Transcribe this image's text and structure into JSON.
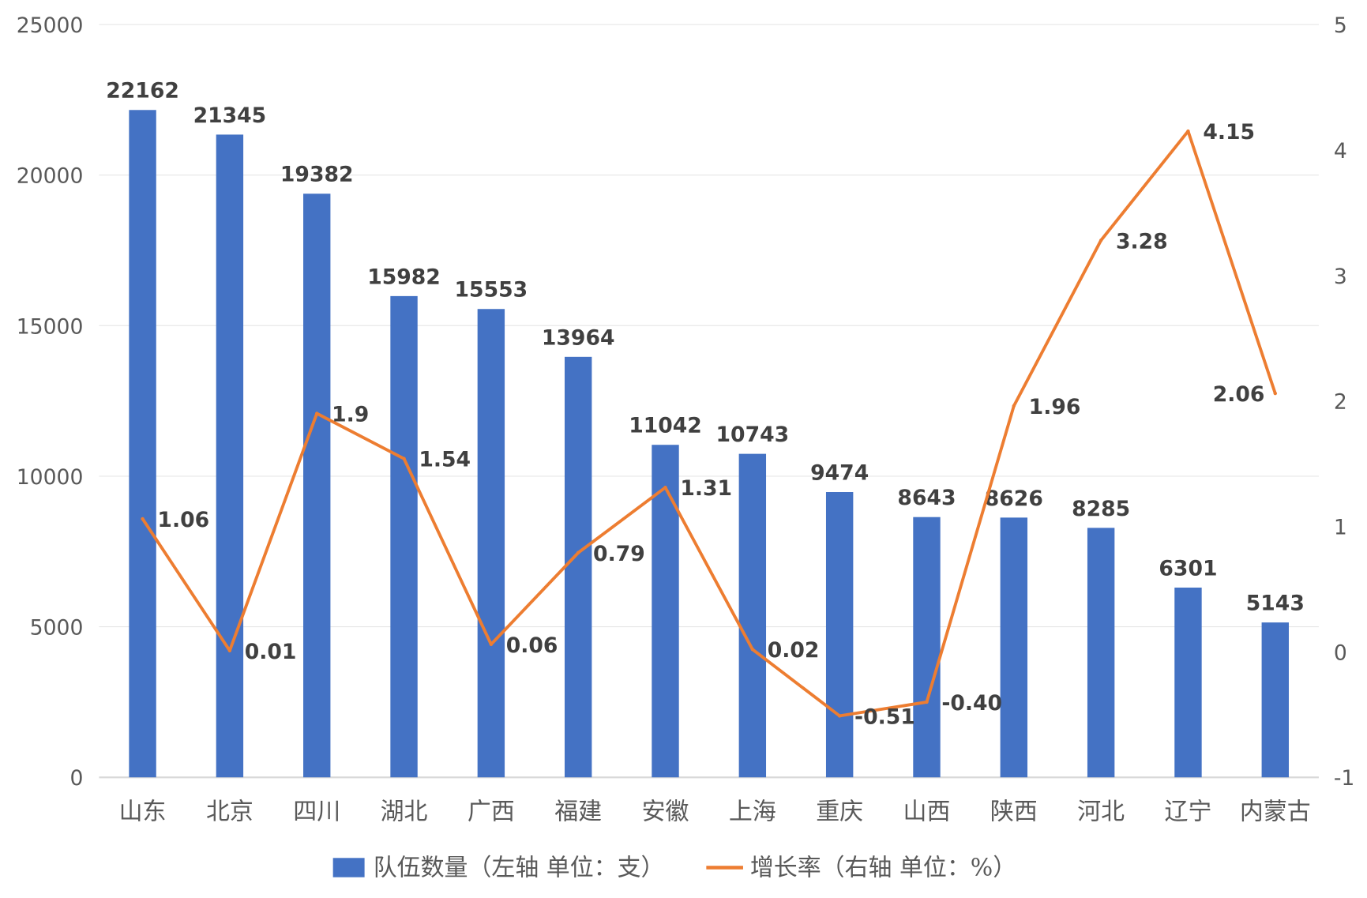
{
  "chart_data": {
    "type": "bar+line",
    "categories": [
      "山东",
      "北京",
      "四川",
      "湖北",
      "广西",
      "福建",
      "安徽",
      "上海",
      "重庆",
      "山西",
      "陕西",
      "河北",
      "辽宁",
      "内蒙古"
    ],
    "series": [
      {
        "name": "队伍数量（左轴 单位：支）",
        "type": "bar",
        "axis": "left",
        "color": "#4472C4",
        "values": [
          22162,
          21345,
          19382,
          15982,
          15553,
          13964,
          11042,
          10743,
          9474,
          8643,
          8626,
          8285,
          6301,
          5143
        ],
        "labels": [
          "22162",
          "21345",
          "19382",
          "15982",
          "15553",
          "13964",
          "11042",
          "10743",
          "9474",
          "8643",
          "8626",
          "8285",
          "6301",
          "5143"
        ]
      },
      {
        "name": "增长率（右轴 单位：%）",
        "type": "line",
        "axis": "right",
        "color": "#ED7D31",
        "values": [
          1.06,
          0.01,
          1.9,
          1.54,
          0.06,
          0.79,
          1.31,
          0.02,
          -0.51,
          -0.4,
          1.96,
          3.28,
          4.15,
          2.06
        ],
        "labels": [
          "1.06",
          "0.01",
          "1.9",
          "1.54",
          "0.06",
          "0.79",
          "1.31",
          "0.02",
          "-0.51",
          "-0.40",
          "1.96",
          "3.28",
          "4.15",
          "2.06"
        ]
      }
    ],
    "left_axis": {
      "ylim": [
        0,
        25000
      ],
      "ticks": [
        "0",
        "5000",
        "10000",
        "15000",
        "20000",
        "25000"
      ]
    },
    "right_axis": {
      "ylim": [
        -1,
        5
      ],
      "ticks": [
        "-1",
        "0",
        "1",
        "2",
        "3",
        "4",
        "5"
      ]
    },
    "grid": true,
    "legend": "bottom"
  }
}
